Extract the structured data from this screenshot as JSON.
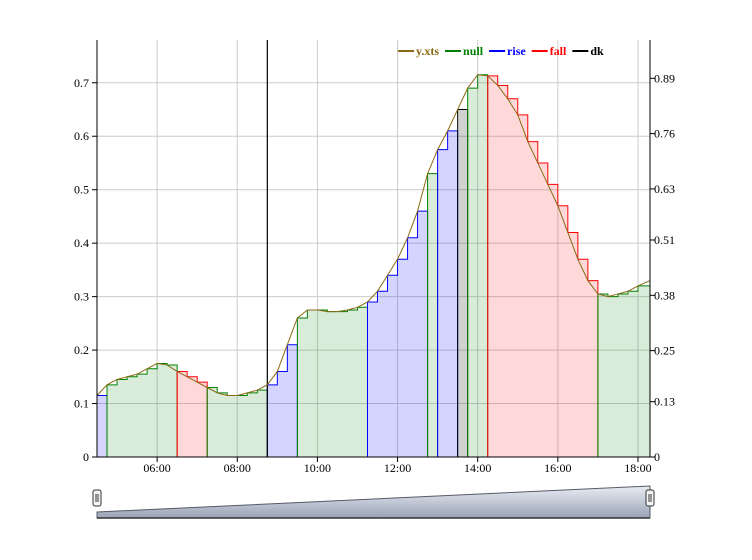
{
  "colors": {
    "line": "#8B6914",
    "null": "#008000",
    "rise": "#0000FF",
    "fall": "#FF0000",
    "dk": "#000000",
    "null_fill": "rgba(0,128,0,0.15)",
    "rise_fill": "rgba(0,0,255,0.17)",
    "fall_fill": "rgba(255,0,0,0.15)",
    "dk_fill": "rgba(0,0,0,0.18)",
    "grid": "#cccccc",
    "navigator_fill": "#b8bfcc"
  },
  "chart_data": {
    "type": "area",
    "legend": {
      "placement": "top-right",
      "entries": [
        "y.xts",
        "null",
        "rise",
        "fall",
        "dk"
      ]
    },
    "x_unit": "hours",
    "x_range": [
      4.5,
      18.3
    ],
    "x_ticks": [
      {
        "x": 6,
        "label": "06:00"
      },
      {
        "x": 8,
        "label": "08:00"
      },
      {
        "x": 10,
        "label": "10:00"
      },
      {
        "x": 12,
        "label": "12:00"
      },
      {
        "x": 14,
        "label": "14:00"
      },
      {
        "x": 16,
        "label": "16:00"
      },
      {
        "x": 18,
        "label": "18:00"
      }
    ],
    "y_left": {
      "range": [
        0,
        0.78
      ],
      "ticks": [
        "0",
        "0.1",
        "0.2",
        "0.3",
        "0.4",
        "0.5",
        "0.6",
        "0.7"
      ]
    },
    "y_right": {
      "range": [
        0,
        0.98
      ],
      "ticks": [
        "0",
        "0.13",
        "0.25",
        "0.38",
        "0.51",
        "0.63",
        "0.76",
        "0.89"
      ]
    },
    "grid": true,
    "series_line": {
      "name": "y.xts",
      "x": [
        4.5,
        4.75,
        5.0,
        5.25,
        5.5,
        5.75,
        6.0,
        6.25,
        6.5,
        6.75,
        7.0,
        7.25,
        7.5,
        7.75,
        8.0,
        8.25,
        8.5,
        8.75,
        9.0,
        9.25,
        9.5,
        9.75,
        10.0,
        10.25,
        10.5,
        10.75,
        11.0,
        11.25,
        11.5,
        11.75,
        12.0,
        12.25,
        12.5,
        12.75,
        13.0,
        13.25,
        13.5,
        13.75,
        14.0,
        14.25,
        14.5,
        14.75,
        15.0,
        15.25,
        15.5,
        15.75,
        16.0,
        16.25,
        16.5,
        16.75,
        17.0,
        17.25,
        17.5,
        17.75,
        18.0,
        18.3
      ],
      "y": [
        0.115,
        0.135,
        0.145,
        0.15,
        0.155,
        0.165,
        0.175,
        0.172,
        0.16,
        0.15,
        0.14,
        0.13,
        0.12,
        0.115,
        0.115,
        0.12,
        0.125,
        0.135,
        0.16,
        0.21,
        0.26,
        0.275,
        0.275,
        0.272,
        0.272,
        0.275,
        0.28,
        0.29,
        0.31,
        0.34,
        0.37,
        0.41,
        0.46,
        0.53,
        0.575,
        0.61,
        0.65,
        0.69,
        0.715,
        0.713,
        0.695,
        0.67,
        0.64,
        0.59,
        0.55,
        0.51,
        0.47,
        0.42,
        0.37,
        0.33,
        0.305,
        0.3,
        0.305,
        0.31,
        0.32,
        0.33
      ]
    },
    "regimes": [
      {
        "type": "rise",
        "x0": 4.5,
        "x1": 4.75
      },
      {
        "type": "null",
        "x0": 4.75,
        "x1": 6.5
      },
      {
        "type": "fall",
        "x0": 6.5,
        "x1": 7.25
      },
      {
        "type": "null",
        "x0": 7.25,
        "x1": 8.75
      },
      {
        "type": "rise",
        "x0": 8.75,
        "x1": 9.5
      },
      {
        "type": "null",
        "x0": 9.5,
        "x1": 11.25
      },
      {
        "type": "rise",
        "x0": 11.25,
        "x1": 12.75
      },
      {
        "type": "null",
        "x0": 12.75,
        "x1": 13.0
      },
      {
        "type": "rise",
        "x0": 13.0,
        "x1": 13.5
      },
      {
        "type": "dk",
        "x0": 13.5,
        "x1": 13.75
      },
      {
        "type": "null",
        "x0": 13.75,
        "x1": 14.25
      },
      {
        "type": "fall",
        "x0": 14.25,
        "x1": 17.0
      },
      {
        "type": "null",
        "x0": 17.0,
        "x1": 18.3
      }
    ],
    "vertical_marker_x": 8.75
  }
}
